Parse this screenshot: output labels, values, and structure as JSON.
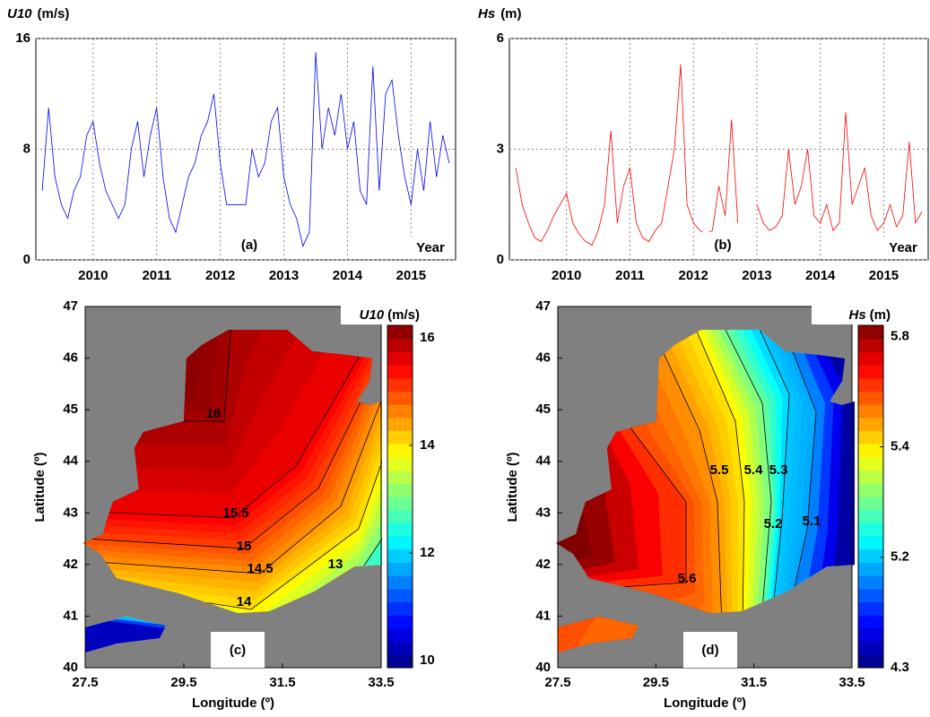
{
  "chart_data": [
    {
      "type": "line",
      "ylabel": "U10",
      "yunit": "(m/s)",
      "panel": "(a)",
      "xlabel": "Year",
      "color": "#0000ff",
      "xlim": [
        2009.1,
        2015.7
      ],
      "ylim": [
        0,
        16
      ],
      "xticks": [
        2010,
        2011,
        2012,
        2013,
        2014,
        2015
      ],
      "yticks": [
        0,
        8,
        16
      ],
      "grid": true,
      "x": [
        2009.2,
        2009.3,
        2009.4,
        2009.5,
        2009.6,
        2009.7,
        2009.8,
        2009.9,
        2010.0,
        2010.1,
        2010.2,
        2010.3,
        2010.4,
        2010.5,
        2010.6,
        2010.7,
        2010.8,
        2010.9,
        2011.0,
        2011.1,
        2011.2,
        2011.3,
        2011.4,
        2011.5,
        2011.6,
        2011.7,
        2011.8,
        2011.9,
        2012.0,
        2012.1,
        2012.2,
        2012.3,
        2012.4,
        2012.5,
        2012.6,
        2012.7,
        2012.8,
        2012.9,
        2013.0,
        2013.1,
        2013.2,
        2013.3,
        2013.4,
        2013.5,
        2013.6,
        2013.7,
        2013.8,
        2013.9,
        2014.0,
        2014.1,
        2014.2,
        2014.3,
        2014.4,
        2014.5,
        2014.6,
        2014.7,
        2014.8,
        2014.9,
        2015.0,
        2015.1,
        2015.2,
        2015.3,
        2015.4,
        2015.5,
        2015.6
      ],
      "values": [
        5,
        11,
        6,
        4,
        3,
        5,
        6,
        9,
        10,
        7,
        5,
        4,
        3,
        4,
        8,
        10,
        6,
        9,
        11,
        6,
        3,
        2,
        4,
        6,
        7,
        9,
        10,
        12,
        7,
        4,
        4,
        4,
        4,
        8,
        6,
        7,
        10,
        11,
        6,
        4,
        3,
        1,
        2,
        15,
        8,
        11,
        9,
        12,
        8,
        10,
        5,
        4,
        14,
        5,
        12,
        13,
        9,
        6,
        4,
        8,
        5,
        10,
        6,
        9,
        7
      ]
    },
    {
      "type": "line",
      "ylabel": "Hs",
      "yunit": "(m)",
      "panel": "(b)",
      "xlabel": "Year",
      "color": "#ff0000",
      "xlim": [
        2009.1,
        2015.7
      ],
      "ylim": [
        0,
        6
      ],
      "xticks": [
        2010,
        2011,
        2012,
        2013,
        2014,
        2015
      ],
      "yticks": [
        0,
        3,
        6
      ],
      "grid": true,
      "x": [
        2009.2,
        2009.3,
        2009.4,
        2009.5,
        2009.6,
        2009.7,
        2009.8,
        2009.9,
        2010.0,
        2010.1,
        2010.2,
        2010.3,
        2010.4,
        2010.5,
        2010.6,
        2010.7,
        2010.8,
        2010.9,
        2011.0,
        2011.1,
        2011.2,
        2011.3,
        2011.4,
        2011.5,
        2011.6,
        2011.7,
        2011.8,
        2011.9,
        2012.0,
        2012.1,
        2012.2,
        2012.3,
        2012.4,
        2012.5,
        2012.6,
        2012.7,
        2012.8,
        2012.9,
        2013.0,
        2013.1,
        2013.2,
        2013.3,
        2013.4,
        2013.5,
        2013.6,
        2013.7,
        2013.8,
        2013.9,
        2014.0,
        2014.1,
        2014.2,
        2014.3,
        2014.4,
        2014.5,
        2014.6,
        2014.7,
        2014.8,
        2014.9,
        2015.0,
        2015.1,
        2015.2,
        2015.3,
        2015.4,
        2015.5,
        2015.6
      ],
      "values": [
        2.5,
        1.5,
        1,
        0.6,
        0.5,
        0.8,
        1.2,
        1.5,
        1.8,
        1,
        0.7,
        0.5,
        0.4,
        0.8,
        1.5,
        3.5,
        1,
        2,
        2.5,
        1,
        0.6,
        0.5,
        0.8,
        1,
        2,
        3,
        5.3,
        1.5,
        1,
        0.8,
        0.7,
        0.8,
        2,
        1.2,
        3.8,
        1,
        null,
        null,
        1.5,
        1,
        0.8,
        0.9,
        1.2,
        3,
        1.5,
        2,
        3,
        1.2,
        1,
        1.5,
        0.8,
        1,
        4,
        1.5,
        2,
        2.5,
        1.2,
        0.8,
        1,
        1.5,
        0.9,
        1.2,
        3.2,
        1,
        1.3
      ]
    },
    {
      "type": "contour",
      "cbar_label": "U10",
      "cbar_unit": "(m/s)",
      "panel": "(c)",
      "xlabel": "Longitude (º)",
      "ylabel": "Latitude (º)",
      "xlim": [
        27.5,
        33.5
      ],
      "ylim": [
        40,
        47
      ],
      "xticks": [
        27.5,
        29.5,
        31.5,
        33.5
      ],
      "yticks": [
        40,
        41,
        42,
        43,
        44,
        45,
        46,
        47
      ],
      "clim": [
        9.87,
        16.23
      ],
      "cticks": [
        10,
        12,
        14,
        16
      ],
      "contour_levels": [
        16,
        15.5,
        15,
        14.5,
        14,
        13
      ],
      "colormap": "jet"
    },
    {
      "type": "contour",
      "cbar_label": "Hs",
      "cbar_unit": "(m)",
      "panel": "(d)",
      "xlabel": "Longitude (º)",
      "ylabel": "Latitude (º)",
      "xlim": [
        27.5,
        33.5
      ],
      "ylim": [
        40,
        47
      ],
      "xticks": [
        27.5,
        29.5,
        31.5,
        33.5
      ],
      "yticks": [
        40,
        41,
        42,
        43,
        44,
        45,
        46,
        47
      ],
      "clim": [
        4.3,
        5.84
      ],
      "cticks": [
        4.3,
        5.2,
        5.4,
        5.8
      ],
      "contour_levels": [
        5.6,
        5.5,
        5.4,
        5.3,
        5.2,
        5.1
      ],
      "colormap": "jet"
    }
  ]
}
